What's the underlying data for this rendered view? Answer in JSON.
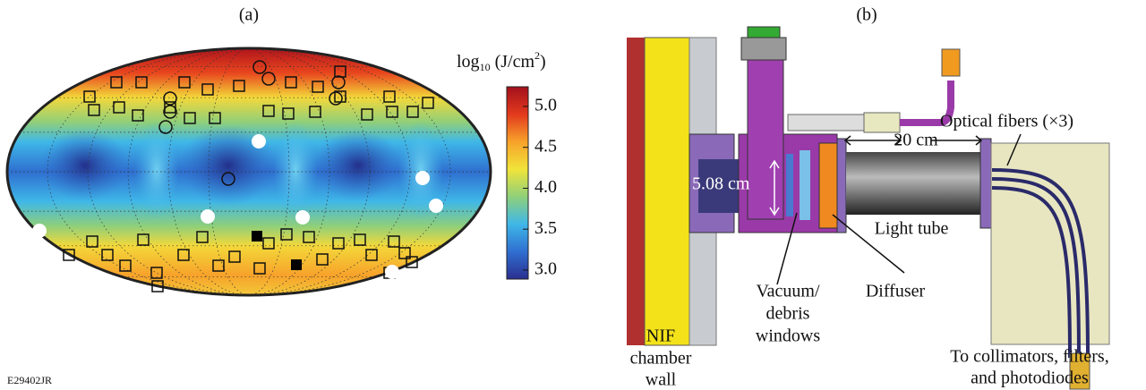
{
  "panel_a": {
    "label": "(a)",
    "colorbar": {
      "title": {
        "base": "log",
        "sub": "10",
        "unit": " (J/cm",
        "sup": "2",
        "end": ")"
      },
      "lim": [
        2.89,
        5.24
      ],
      "ticks": [
        {
          "value": 3,
          "label": "3.0"
        },
        3.5,
        {
          "value": 4,
          "label": "4.0"
        },
        4.5,
        {
          "value": 5,
          "label": "5.0"
        }
      ],
      "colors": [
        "#2b2f8f",
        "#2f6fd0",
        "#3fb7e8",
        "#8fd07a",
        "#f1e43a",
        "#f7a22a",
        "#e23a1d",
        "#a3101c"
      ]
    }
  },
  "panel_b": {
    "label": "(b)",
    "labels": {
      "fibers": "Optical fibers (×3)",
      "length": "20 cm",
      "diameter": "5.08 cm",
      "tube": "Light tube",
      "windows": [
        "Vacuum/",
        "debris",
        "windows"
      ],
      "diffuser": "Diffuser",
      "wall": [
        "NIF",
        "chamber",
        "wall"
      ],
      "collimators": [
        "To collimators, filters,",
        "and photodiodes"
      ]
    }
  },
  "figure_id": "E29402JR"
}
